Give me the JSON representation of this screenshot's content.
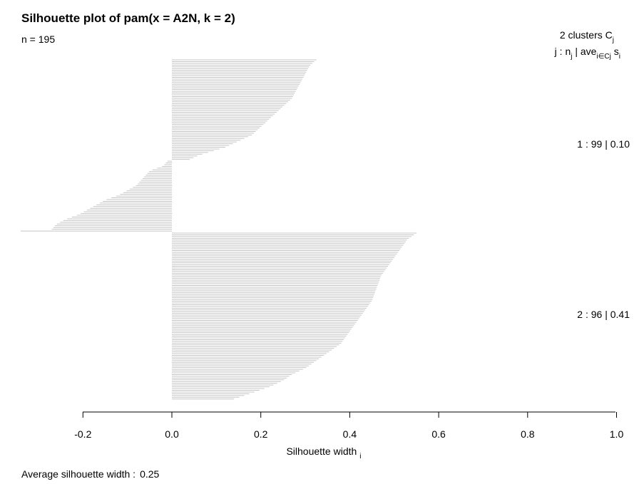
{
  "chart_data": {
    "type": "bar",
    "orientation": "horizontal",
    "title": "Silhouette plot of pam(x = A2N, k = 2)",
    "n_label": "n = 195",
    "xlabel": "Silhouette width",
    "xlabel_subscript": "i",
    "xlim": [
      -0.2,
      1.0
    ],
    "xticks": [
      -0.2,
      0.0,
      0.2,
      0.4,
      0.6,
      0.8,
      1.0
    ],
    "xtick_labels": [
      "-0.2",
      "0.0",
      "0.2",
      "0.4",
      "0.6",
      "0.8",
      "1.0"
    ],
    "average_label": "Average silhouette width :",
    "average_value": "0.25",
    "legend_header": {
      "line1": "2  clusters  C",
      "line1_sub": "j",
      "line2_prefix": "j :  n",
      "line2_sub1": "j",
      "line2_mid": " | ave",
      "line2_sub2": "i∈Cj",
      "line2_suffix": "  s",
      "line2_sub3": "i"
    },
    "clusters": [
      {
        "id": 1,
        "label": "1 :  99  |  0.10",
        "count": 99,
        "avg": 0.1,
        "first_value": 0.325,
        "positive": [
          0.32,
          0.31,
          0.305,
          0.3,
          0.295,
          0.29,
          0.285,
          0.28,
          0.275,
          0.27,
          0.26,
          0.25,
          0.24,
          0.23,
          0.22,
          0.21,
          0.2,
          0.19,
          0.18,
          0.16,
          0.14,
          0.12,
          0.09,
          0.06,
          0.04
        ],
        "negative_breaks": [
          -0.01,
          -0.02,
          -0.05,
          -0.06,
          -0.07,
          -0.08,
          -0.1,
          -0.12,
          -0.15,
          -0.17,
          -0.19,
          -0.21,
          -0.24,
          -0.26,
          -0.27
        ],
        "last_value": -0.34
      },
      {
        "id": 2,
        "label": "2 :  96  |  0.41",
        "count": 96,
        "avg": 0.41,
        "profile": [
          0.55,
          0.53,
          0.52,
          0.51,
          0.5,
          0.49,
          0.48,
          0.47,
          0.465,
          0.46,
          0.455,
          0.45,
          0.44,
          0.43,
          0.42,
          0.41,
          0.4,
          0.39,
          0.38,
          0.36,
          0.34,
          0.32,
          0.3,
          0.27,
          0.25,
          0.22,
          0.18,
          0.14
        ]
      }
    ]
  }
}
